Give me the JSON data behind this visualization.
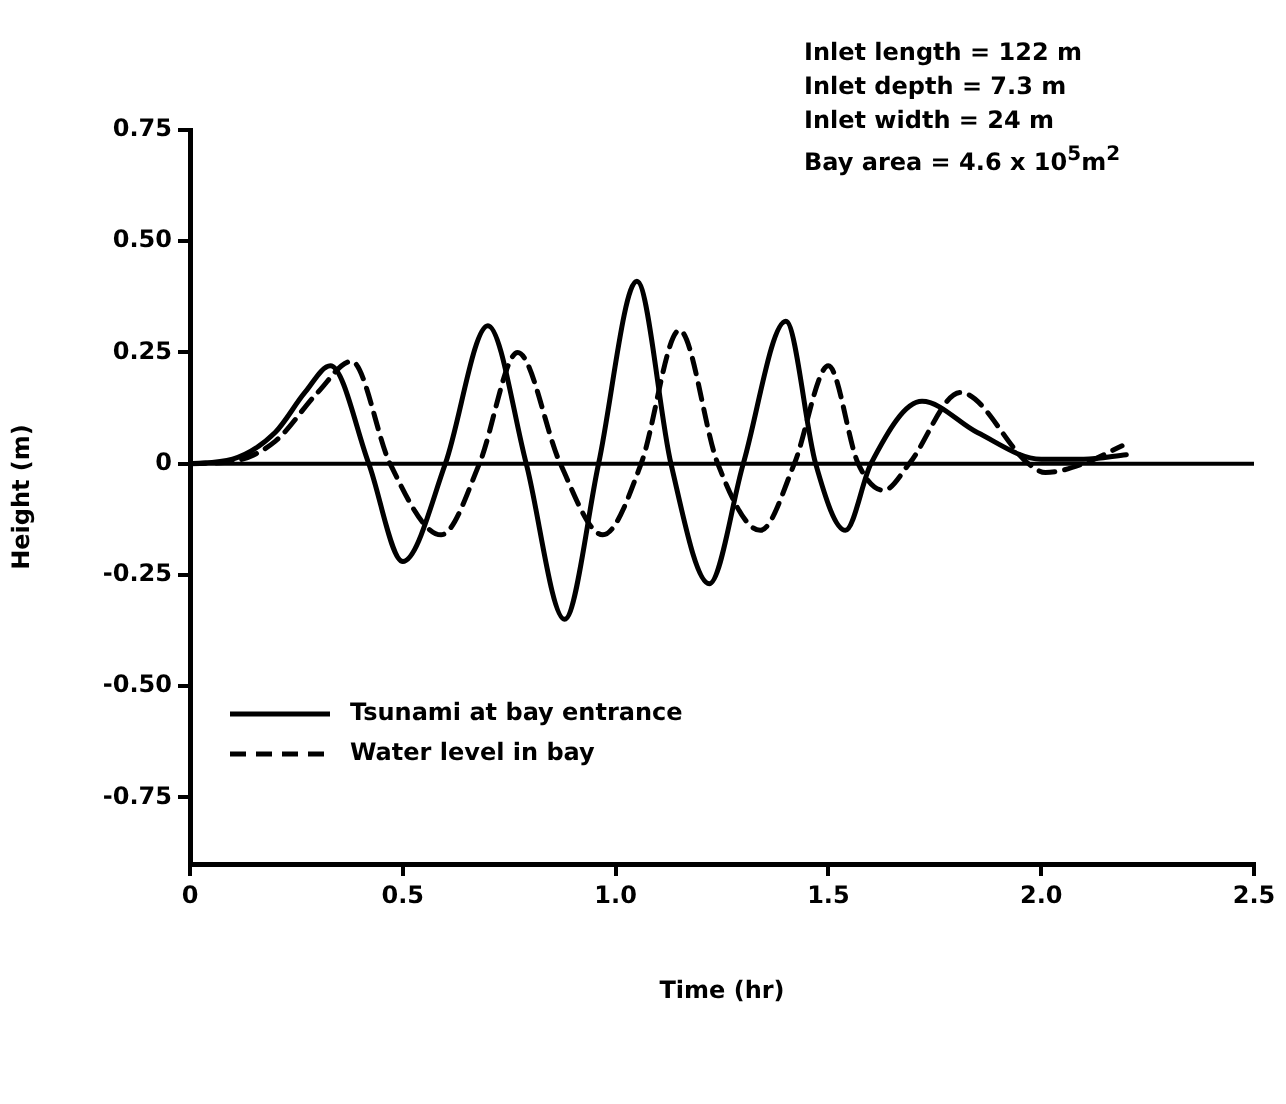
{
  "chart_data": {
    "type": "line",
    "xlabel": "Time (hr)",
    "ylabel": "Height (m)",
    "xlim": [
      0,
      2.5
    ],
    "xticks": [
      0,
      0.5,
      {
        "value": 1,
        "label": "1.0"
      },
      1.5,
      {
        "value": 2,
        "label": "2.0"
      },
      2.5
    ],
    "ylim": [
      -0.9,
      0.75
    ],
    "yticks": [
      0.75,
      {
        "value": 0.5,
        "label": "0.50"
      },
      0.25,
      0,
      -0.25,
      {
        "value": -0.5,
        "label": "-0.50"
      },
      -0.75
    ],
    "grid": false,
    "legend": "bottom left",
    "marker": "none",
    "ref_lines": [
      {
        "axis": "y",
        "value": 0,
        "color": "#000000"
      }
    ],
    "annotations": [
      "Inlet length = 122  m",
      "Inlet depth = 7.3  m",
      "Inlet width = 24  m",
      "Bay area = 4.6 x 10$^{5}$m$^{2}$"
    ],
    "series": [
      {
        "name": "Tsunami at bay entrance",
        "color": "#000000",
        "line_style": "solid",
        "x": [
          0,
          0.1,
          0.2,
          0.27,
          0.33,
          0.42,
          0.5,
          0.6,
          0.7,
          0.79,
          0.88,
          0.96,
          1.05,
          1.13,
          1.22,
          1.3,
          1.4,
          1.47,
          1.54,
          1.6,
          1.72,
          1.85,
          2.0,
          2.1,
          2.2
        ],
        "values": [
          0,
          0.01,
          0.07,
          0.16,
          0.22,
          0,
          -0.22,
          0,
          0.31,
          0,
          -0.35,
          0,
          0.41,
          0,
          -0.27,
          0,
          0.32,
          0,
          -0.15,
          0,
          0.14,
          0.07,
          0.01,
          0.01,
          0.02
        ]
      },
      {
        "name": "Water level in bay",
        "color": "#000000",
        "line_style": "dashed",
        "x": [
          0,
          0.1,
          0.2,
          0.3,
          0.38,
          0.47,
          0.59,
          0.68,
          0.77,
          0.87,
          0.97,
          1.06,
          1.15,
          1.24,
          1.34,
          1.42,
          1.5,
          1.57,
          1.63,
          1.69,
          1.81,
          1.97,
          2.01,
          2.1,
          2.19
        ],
        "values": [
          0,
          0.005,
          0.05,
          0.16,
          0.23,
          0,
          -0.16,
          0,
          0.25,
          0,
          -0.16,
          0,
          0.3,
          0,
          -0.15,
          0,
          0.22,
          0,
          -0.06,
          0,
          0.16,
          0,
          -0.02,
          0,
          0.04
        ]
      }
    ]
  }
}
